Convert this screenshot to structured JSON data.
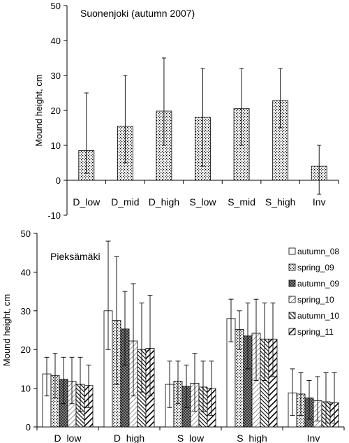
{
  "chart_data": [
    {
      "type": "bar",
      "title": "Suonenjoki (autumn 2007)",
      "xlabel": "",
      "ylabel": "Mound height, cm",
      "ylim": [
        -10,
        50
      ],
      "yticks": [
        -10,
        0,
        10,
        20,
        30,
        40,
        50
      ],
      "grid": false,
      "categories": [
        "D_low",
        "D_mid",
        "D_high",
        "S_low",
        "S_mid",
        "S_high",
        "Inv"
      ],
      "values": [
        8.5,
        15.5,
        19.8,
        18,
        20.5,
        22.8,
        4
      ],
      "error_lower": [
        2,
        5,
        10,
        4,
        10,
        15,
        -4
      ],
      "error_upper": [
        25,
        30,
        35,
        32,
        32,
        32,
        10
      ],
      "pattern": "dots"
    },
    {
      "type": "bar",
      "title": "Pieksämäki",
      "xlabel": "",
      "ylabel": "Mound height, cm",
      "ylim": [
        0,
        50
      ],
      "yticks": [
        0,
        10,
        20,
        30,
        40,
        50
      ],
      "grid": false,
      "legend": "top-right",
      "categories": [
        "D_low",
        "D_high",
        "S_low",
        "S_high",
        "Inv"
      ],
      "series": [
        {
          "name": "autumn_08",
          "pattern": "open",
          "values": [
            13.7,
            30,
            11,
            28,
            8.8
          ],
          "error_upper": [
            18,
            48,
            17,
            33,
            15
          ],
          "error_lower": [
            8,
            20,
            5,
            22,
            3
          ]
        },
        {
          "name": "spring_09",
          "pattern": "dots",
          "values": [
            13.3,
            27.5,
            11.8,
            25.2,
            8.5
          ],
          "error_upper": [
            19,
            44,
            17,
            30,
            14
          ],
          "error_lower": [
            7.5,
            11,
            6,
            20,
            3
          ]
        },
        {
          "name": "autumn_09",
          "pattern": "cross",
          "values": [
            12.3,
            25.3,
            10.5,
            23.5,
            7.5
          ],
          "error_upper": [
            18,
            35,
            16,
            32,
            12
          ],
          "error_lower": [
            6,
            16,
            5,
            15,
            2
          ]
        },
        {
          "name": "spring_10",
          "pattern": "diag-light",
          "values": [
            11.8,
            22.2,
            11.3,
            24.2,
            6.8
          ],
          "error_upper": [
            18,
            37,
            19,
            33,
            13
          ],
          "error_lower": [
            6,
            8,
            4,
            12,
            1.5
          ]
        },
        {
          "name": "autumn_10",
          "pattern": "diag-dark",
          "values": [
            11,
            20,
            10.3,
            22.7,
            6.5
          ],
          "error_upper": [
            18,
            32,
            17,
            32,
            14
          ],
          "error_lower": [
            4,
            9,
            4,
            12,
            1
          ]
        },
        {
          "name": "spring_11",
          "pattern": "diag-bold",
          "values": [
            10.7,
            20.3,
            10,
            22.7,
            6.3
          ],
          "error_upper": [
            16,
            34,
            17,
            32,
            14
          ],
          "error_lower": [
            5,
            8,
            3,
            13,
            1
          ]
        }
      ]
    }
  ]
}
